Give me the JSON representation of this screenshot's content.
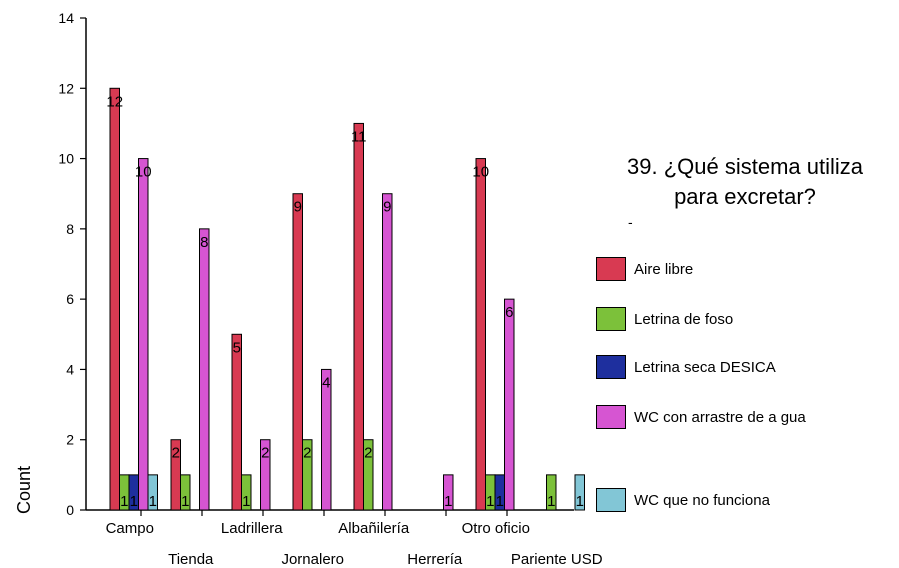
{
  "chart_data": {
    "type": "bar",
    "title": "39. ¿Qué sistema utiliza para excretar?",
    "title_lines": [
      "39. ¿Qué sistema utiliza",
      "para excretar?"
    ],
    "title_mark": "-",
    "ylabel": "Count",
    "xlabel": "",
    "ylim": [
      0,
      14
    ],
    "yticks": [
      0,
      2,
      4,
      6,
      8,
      10,
      12,
      14
    ],
    "grid": false,
    "legend_position": "right",
    "categories": [
      "Campo",
      "Tienda",
      "Ladrillera",
      "Jornalero",
      "Albañilería",
      "Herrería",
      "Otro oficio",
      "Pariente USD"
    ],
    "series": [
      {
        "name": "Aire libre",
        "color": "#d83a52",
        "values": [
          12,
          2,
          5,
          9,
          11,
          null,
          10,
          null
        ]
      },
      {
        "name": "Letrina de foso",
        "color": "#7cc13a",
        "values": [
          1,
          1,
          1,
          2,
          2,
          null,
          1,
          1
        ]
      },
      {
        "name": "Letrina seca DESICA",
        "color": "#1e2f9e",
        "values": [
          1,
          null,
          null,
          null,
          null,
          null,
          1,
          null
        ]
      },
      {
        "name": "WC con arrastre de a gua",
        "color": "#d655d2",
        "values": [
          10,
          8,
          2,
          4,
          9,
          1,
          6,
          null
        ]
      },
      {
        "name": "WC que no funciona",
        "color": "#82c6d6",
        "values": [
          1,
          null,
          null,
          null,
          null,
          null,
          null,
          1
        ]
      }
    ]
  }
}
